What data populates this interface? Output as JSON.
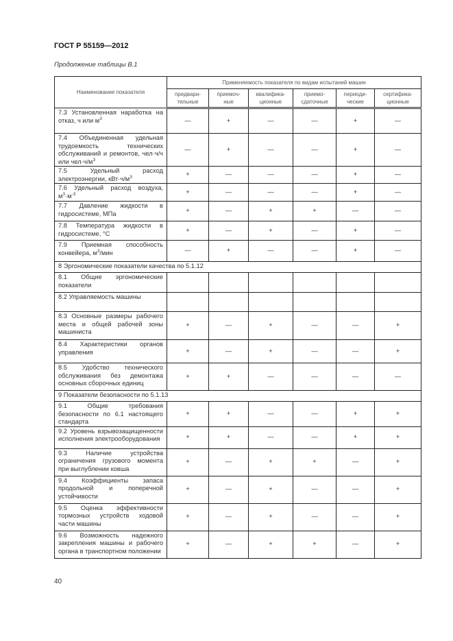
{
  "document": {
    "standard": "ГОСТ Р 55159—2012",
    "caption": "Продолжение таблицы В.1",
    "page_number": "40"
  },
  "table": {
    "header": {
      "name_column": "Наименование показателя",
      "group": "Применяемость показателя по видам испытаний машин",
      "columns": [
        "предвари-тельные",
        "приемоч-ные",
        "квалифика-ционные",
        "приемо-сдаточные",
        "периоди-ческие",
        "сертифика-ционные"
      ]
    },
    "rows": [
      {
        "name": "7.3 Установленная наработка на отказ, ч или м^3",
        "values": [
          "—",
          "+",
          "—",
          "—",
          "+",
          "—"
        ]
      },
      {
        "name": "7.4 Объединенная удельная трудоемкость технических обслуживаний и ремонтов, чел·ч/ч или чел·ч/м^3",
        "values": [
          "—",
          "+",
          "—",
          "—",
          "+",
          "—"
        ]
      },
      {
        "name": "7.5 Удельный расход электроэнергии, кВт·ч/м^3",
        "values": [
          "+",
          "—",
          "—",
          "—",
          "+",
          "—"
        ]
      },
      {
        "name": "7.6 Удельный расход воздуха, м^3·м^-3",
        "values": [
          "+",
          "—",
          "—",
          "—",
          "+",
          "—"
        ]
      },
      {
        "name": "7.7 Давление жидкости в гидросистеме, МПа",
        "values": [
          "+",
          "—",
          "+",
          "+",
          "—",
          "—"
        ]
      },
      {
        "name": "7.8 Температура жидкости в гидросистеме, °С",
        "values": [
          "+",
          "—",
          "+",
          "—",
          "+",
          "—"
        ]
      },
      {
        "name": "7.9 Приемная способность конвейера, м^3/мин",
        "values": [
          "—",
          "+",
          "—",
          "—",
          "+",
          "—"
        ]
      },
      {
        "section": "8 Эргономические показатели качества по 5.1.12"
      },
      {
        "name": "8.1 Общие эргономические показатели",
        "values": [
          "",
          "",
          "",
          "",
          "",
          ""
        ]
      },
      {
        "name": "8.2 Управляемость машины",
        "values": [
          "",
          "",
          "",
          "",
          "",
          ""
        ]
      },
      {
        "name": "8.3 Основные размеры рабочего места и общей рабочей зоны машиниста",
        "values": [
          "+",
          "—",
          "+",
          "—",
          "—",
          "+"
        ]
      },
      {
        "name": "8.4 Характеристики органов управления",
        "values": [
          "+",
          "—",
          "+",
          "—",
          "—",
          "+"
        ]
      },
      {
        "name": "8.5 Удобство технического обслуживания без демонтажа основных сборочных единиц",
        "values": [
          "+",
          "+",
          "—",
          "—",
          "—",
          "—"
        ]
      },
      {
        "section": "9 Показатели безопасности по 5.1.13"
      },
      {
        "name": "9.1 Общие требования безопасности по 6.1 настоящего стандарта",
        "values": [
          "+",
          "+",
          "—",
          "—",
          "+",
          "+"
        ]
      },
      {
        "name": "9.2 Уровень взрывозащищенности исполнения электрооборудования",
        "values": [
          "+",
          "+",
          "—",
          "—",
          "+",
          "+"
        ]
      },
      {
        "name": "9.3 Наличие устройства ограничения грузового момента при выглублении ковша",
        "values": [
          "+",
          "—",
          "+",
          "+",
          "—",
          "+"
        ]
      },
      {
        "name": "9.4 Коэффициенты запаса продольной и поперечной устойчивости",
        "values": [
          "+",
          "—",
          "+",
          "—",
          "—",
          "+"
        ]
      },
      {
        "name": "9.5 Оценка эффективности тормозных устройств ходовой части машины",
        "values": [
          "+",
          "—",
          "+",
          "—",
          "—",
          "+"
        ]
      },
      {
        "name": "9.6 Возможность надежного закрепления машины и рабочего органа в транспортном положении",
        "values": [
          "+",
          "—",
          "+",
          "+",
          "—",
          "+"
        ]
      }
    ]
  }
}
